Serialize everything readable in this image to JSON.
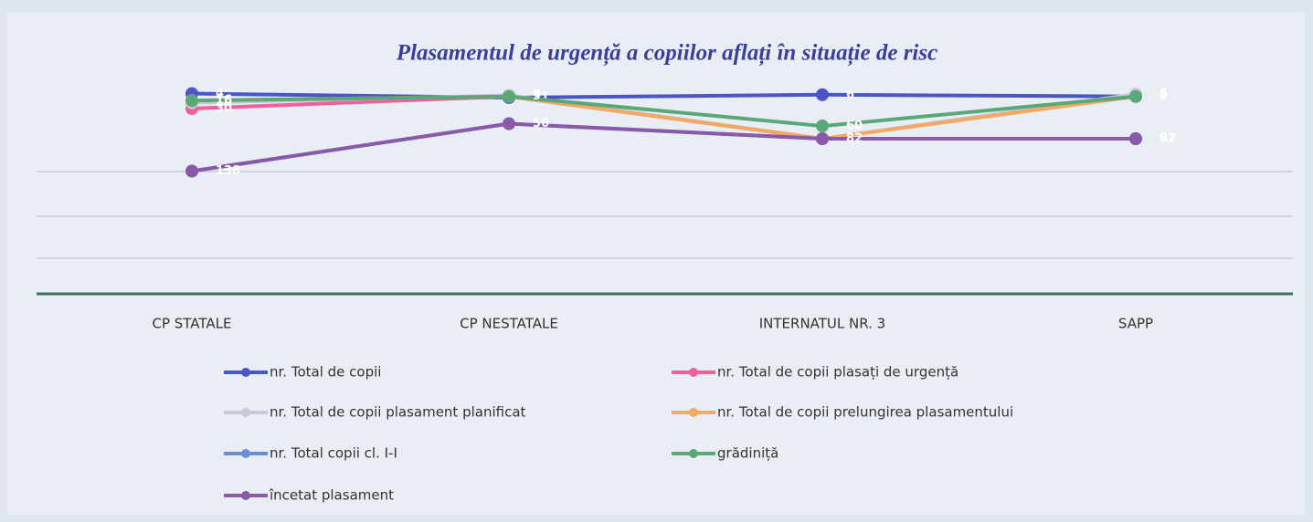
{
  "chart_data": {
    "type": "line",
    "title": "Plasamentul de urgență a copiilor  aflați în situație de risc",
    "categories": [
      "CP STATALE",
      "CP NESTATALE",
      "INTERNATUL NR. 3",
      "SAPP"
    ],
    "ylim": [
      0,
      350
    ],
    "y_reversed": true,
    "series": [
      {
        "name": "nr. Total de copii",
        "color": "#4a55c8",
        "values": [
          4,
          11,
          6,
          9
        ]
      },
      {
        "name": "nr. Total de copii plasați de urgență",
        "color": "#f0609a",
        "values": [
          30,
          9,
          82,
          82
        ]
      },
      {
        "name": "nr. Total de copii plasament planificat",
        "color": "#c4c8d8",
        "values": [
          20,
          7,
          82,
          5
        ]
      },
      {
        "name": "nr. Total de copii prelungirea plasamentului",
        "color": "#f5a860",
        "values": [
          16,
          9,
          82,
          9
        ]
      },
      {
        "name": "nr. Total copii cl. I-I",
        "color": "#6a8fd0",
        "values": [
          138,
          56,
          82,
          82
        ]
      },
      {
        "name": "grădiniță",
        "color": "#5aa878",
        "values": [
          16,
          9,
          60,
          9
        ]
      },
      {
        "name": "încetat plasament",
        "color": "#8a5aa8",
        "values": [
          138,
          56,
          82,
          82
        ]
      }
    ]
  }
}
